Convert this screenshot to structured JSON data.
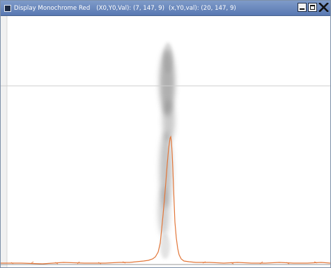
{
  "window": {
    "title": "Display Monochrome Red",
    "readout_1": "(X0,Y0,Val): (7, 147, 9)",
    "readout_2": "(x,Y0,val): (20, 147, 9)",
    "icon": "app-window-icon",
    "buttons": {
      "minimize": "minimize-icon",
      "maximize": "maximize-icon",
      "close": "close-icon"
    }
  },
  "colors": {
    "profile_line": "#e2773a",
    "crosshair": "#c8c8c8",
    "titlebar": "#5878b2"
  }
}
